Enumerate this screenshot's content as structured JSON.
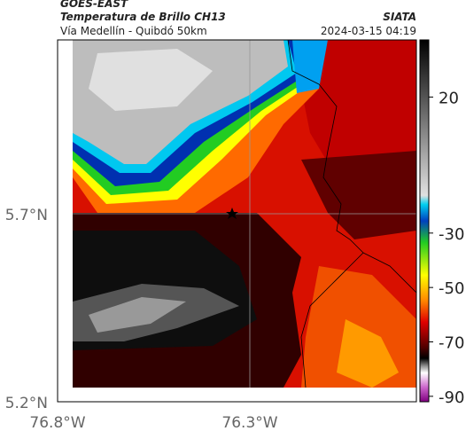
{
  "header": {
    "title": "GOES-EAST",
    "subtitle": "Temperatura de Brillo CH13",
    "route": "Vía Medellín - Quibdó 50km",
    "source": "SIATA",
    "timestamp": "2024-03-15 04:19"
  },
  "axes": {
    "lat_labels": [
      "5.7°N",
      "5.2°N"
    ],
    "lon_labels": [
      "76.8°W",
      "76.3°W"
    ]
  },
  "colorbar": {
    "range": [
      -92,
      41
    ],
    "ticks": [
      20,
      -30,
      -50,
      -70,
      -90
    ]
  }
}
